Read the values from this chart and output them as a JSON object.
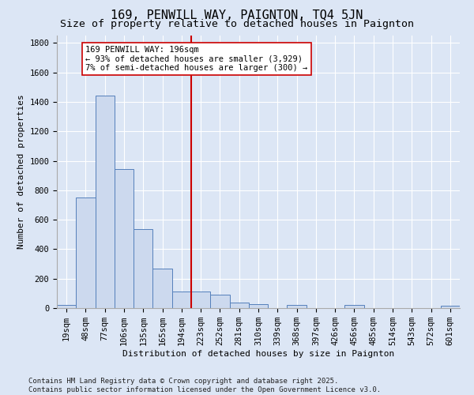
{
  "title": "169, PENWILL WAY, PAIGNTON, TQ4 5JN",
  "subtitle": "Size of property relative to detached houses in Paignton",
  "xlabel": "Distribution of detached houses by size in Paignton",
  "ylabel": "Number of detached properties",
  "bar_labels": [
    "19sqm",
    "48sqm",
    "77sqm",
    "106sqm",
    "135sqm",
    "165sqm",
    "194sqm",
    "223sqm",
    "252sqm",
    "281sqm",
    "310sqm",
    "339sqm",
    "368sqm",
    "397sqm",
    "426sqm",
    "456sqm",
    "485sqm",
    "514sqm",
    "543sqm",
    "572sqm",
    "601sqm"
  ],
  "bar_values": [
    20,
    750,
    1440,
    945,
    535,
    270,
    115,
    115,
    90,
    40,
    25,
    0,
    20,
    0,
    0,
    20,
    0,
    0,
    0,
    0,
    15
  ],
  "bar_color": "#ccd9ee",
  "bar_edge_color": "#5580bb",
  "vline_x_idx": 6,
  "vline_color": "#cc0000",
  "annotation_text": "169 PENWILL WAY: 196sqm\n← 93% of detached houses are smaller (3,929)\n7% of semi-detached houses are larger (300) →",
  "annotation_box_color": "#ffffff",
  "annotation_box_edge": "#cc0000",
  "ylim": [
    0,
    1850
  ],
  "yticks": [
    0,
    200,
    400,
    600,
    800,
    1000,
    1200,
    1400,
    1600,
    1800
  ],
  "footer1": "Contains HM Land Registry data © Crown copyright and database right 2025.",
  "footer2": "Contains public sector information licensed under the Open Government Licence v3.0.",
  "bg_color": "#dce6f5",
  "plot_bg_color": "#dce6f5",
  "title_fontsize": 11,
  "subtitle_fontsize": 9.5,
  "axis_label_fontsize": 8,
  "tick_fontsize": 7.5,
  "footer_fontsize": 6.5,
  "annot_fontsize": 7.5
}
